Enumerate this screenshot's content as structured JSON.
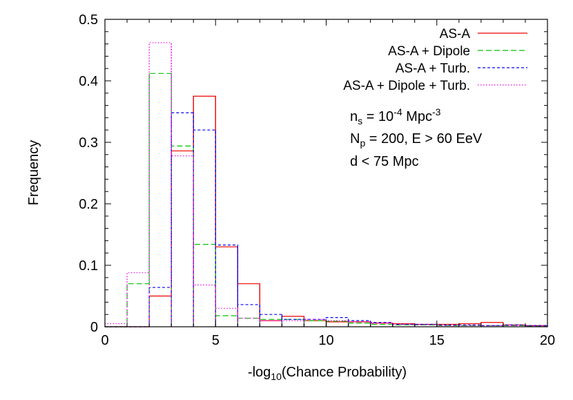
{
  "chart_data": {
    "type": "histogram",
    "xlabel": "-log",
    "xlabel_sub": "10",
    "xlabel_rest": "(Chance Probability)",
    "ylabel": "Frequency",
    "xlim": [
      0,
      20
    ],
    "ylim": [
      0,
      0.5
    ],
    "xticks": [
      0,
      5,
      10,
      15,
      20
    ],
    "yticks": [
      0,
      0.1,
      0.2,
      0.3,
      0.4,
      0.5
    ],
    "xtick_labels": [
      "0",
      "5",
      "10",
      "15",
      "20"
    ],
    "ytick_labels": [
      "0",
      "0.1",
      "0.2",
      "0.3",
      "0.4",
      "0.5"
    ],
    "grid": false,
    "legend_position": "top-right",
    "bin_edges": [
      0,
      1,
      2,
      3,
      4,
      5,
      6,
      7,
      8,
      9,
      10,
      11,
      12,
      13,
      14,
      15,
      16,
      17,
      18,
      19,
      20
    ],
    "series": [
      {
        "name": "AS-A",
        "color": "#ee0000",
        "dash": "solid",
        "values": [
          0,
          0,
          0.05,
          0.286,
          0.375,
          0.13,
          0.07,
          0.01,
          0.017,
          0.01,
          0.008,
          0.008,
          0.006,
          0.005,
          0.004,
          0.004,
          0.005,
          0.007,
          0.003,
          0.002
        ]
      },
      {
        "name": "AS-A + Dipole",
        "color": "#00c000",
        "dash": "long",
        "values": [
          0.0,
          0.07,
          0.412,
          0.294,
          0.134,
          0.018,
          0.014,
          0.012,
          0.012,
          0.01,
          0.009,
          0.006,
          0.004,
          0.003,
          0.003,
          0.002,
          0.002,
          0.002,
          0.002,
          0.001
        ]
      },
      {
        "name": "AS-A + Turb.",
        "color": "#0000ee",
        "dash": "short",
        "values": [
          0.0,
          0.0,
          0.064,
          0.348,
          0.32,
          0.133,
          0.036,
          0.02,
          0.012,
          0.012,
          0.015,
          0.01,
          0.007,
          0.004,
          0.004,
          0.003,
          0.003,
          0.002,
          0.003,
          0.002
        ]
      },
      {
        "name": "AS-A + Dipole + Turb.",
        "color": "#ee00ee",
        "dash": "dotted",
        "values": [
          0.005,
          0.088,
          0.462,
          0.278,
          0.068,
          0.03,
          0.014,
          0.01,
          0.01,
          0.012,
          0.01,
          0.008,
          0.006,
          0.004,
          0.003,
          0.002,
          0.002,
          0.002,
          0.002,
          0.001
        ]
      }
    ],
    "annotations": {
      "ns_base": "n",
      "ns_sub": "s",
      "ns_eq": " = 10",
      "ns_exp": "-4",
      "ns_unit": " Mpc",
      "ns_unit_exp": "-3",
      "np_base": "N",
      "np_sub": "p",
      "np_rest": " = 200, E > 60 EeV",
      "d_line": "d < 75 Mpc"
    }
  }
}
